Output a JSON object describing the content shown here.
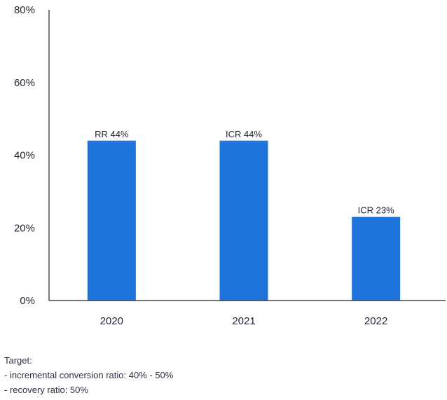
{
  "chart_data": {
    "type": "bar",
    "categories": [
      "2020",
      "2021",
      "2022"
    ],
    "values": [
      44,
      44,
      23
    ],
    "data_labels": [
      "RR 44%",
      "ICR 44%",
      "ICR 23%"
    ],
    "y_ticks": [
      "0%",
      "20%",
      "40%",
      "60%",
      "80%"
    ],
    "ylim": [
      0,
      80
    ],
    "bar_color": "#1f74db",
    "grid": false,
    "xlabel": "",
    "ylabel": ""
  },
  "notes": {
    "title": "Target:",
    "lines": [
      "- incremental conversion ratio: 40% - 50%",
      "- recovery ratio: 50%"
    ]
  }
}
